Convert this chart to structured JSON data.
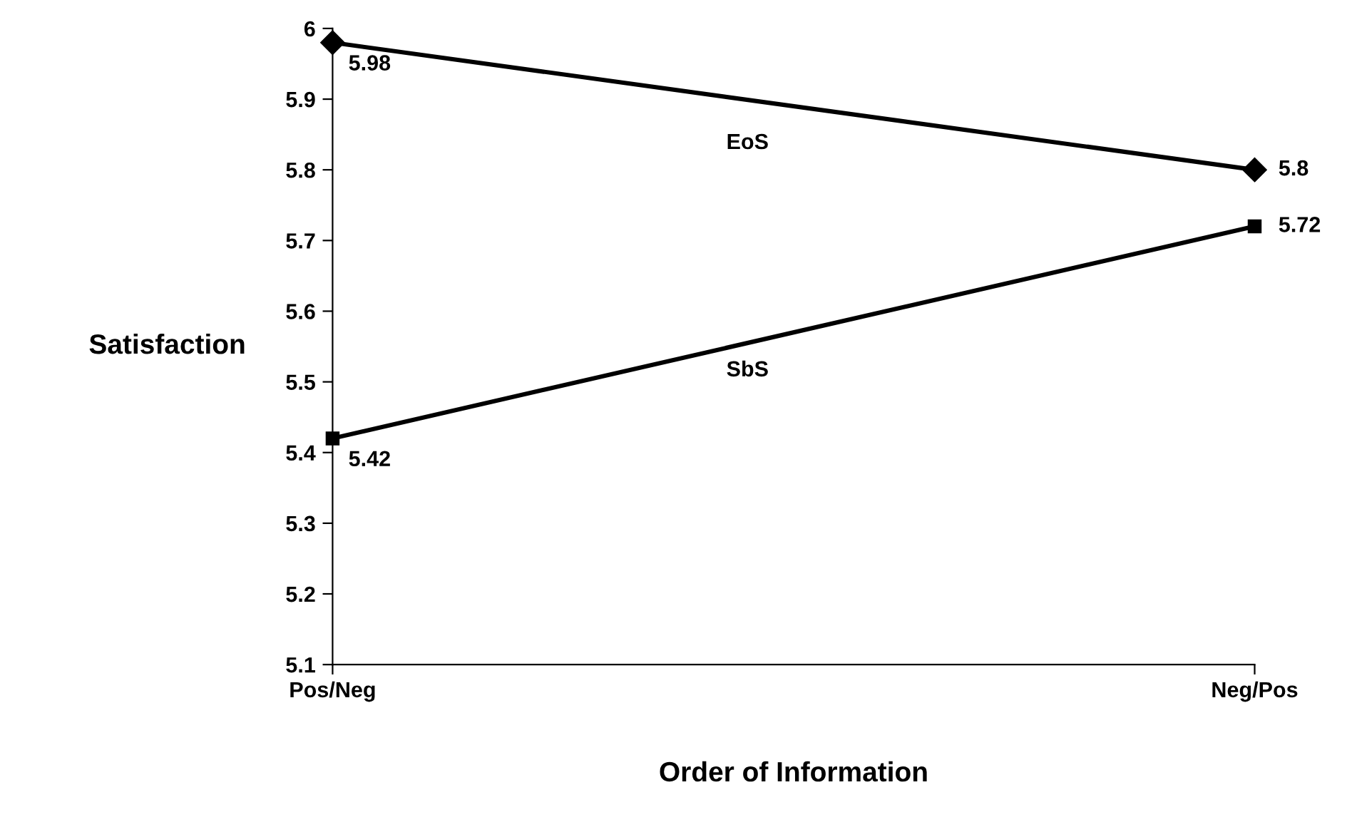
{
  "chart_data": {
    "type": "line",
    "xlabel": "Order of Information",
    "ylabel": "Satisfaction",
    "categories": [
      "Pos/Neg",
      "Neg/Pos"
    ],
    "series": [
      {
        "name": "EoS",
        "color": "#000000",
        "marker": "diamond",
        "values": [
          5.98,
          5.8
        ]
      },
      {
        "name": "SbS",
        "color": "#000000",
        "marker": "square",
        "values": [
          5.42,
          5.72
        ]
      }
    ],
    "ylim": [
      5.1,
      6
    ],
    "yticks": [
      5.1,
      5.2,
      5.3,
      5.4,
      5.5,
      5.6,
      5.7,
      5.8,
      5.9,
      6
    ],
    "data_labels": true,
    "grid": false,
    "legend": false,
    "line_style": "solid"
  }
}
